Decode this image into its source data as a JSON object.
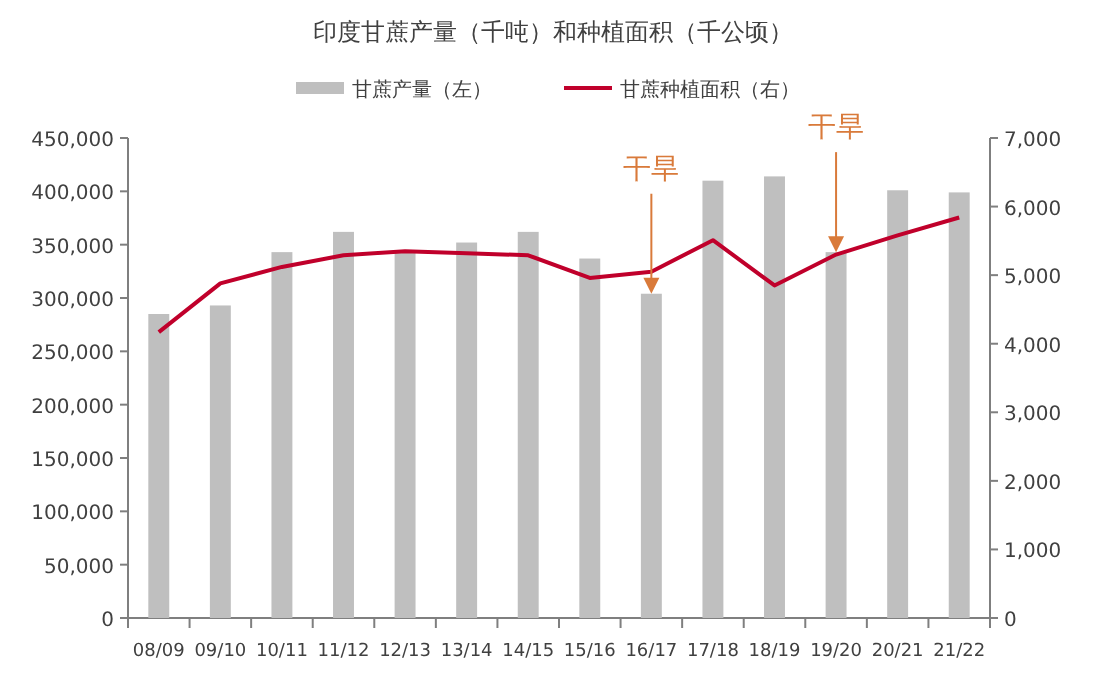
{
  "chart_data": {
    "type": "bar",
    "title": "印度甘蔗产量（千吨）和种植面积（千公顷）",
    "categories": [
      "08/09",
      "09/10",
      "10/11",
      "11/12",
      "12/13",
      "13/14",
      "14/15",
      "15/16",
      "16/17",
      "17/18",
      "18/19",
      "19/20",
      "20/21",
      "21/22"
    ],
    "series": [
      {
        "name": "甘蔗产量（左）",
        "color": "#bfbfbf",
        "values": [
          285000,
          293000,
          343000,
          362000,
          343000,
          352000,
          362000,
          337000,
          304000,
          410000,
          414000,
          343000,
          401000,
          399000
        ]
      },
      {
        "name": "甘蔗种植面积（右）",
        "type": "line",
        "axis": "y2",
        "color": "#c0002b",
        "values": [
          4170,
          4880,
          5120,
          5290,
          5350,
          5320,
          5290,
          4960,
          5050,
          5510,
          4850,
          5300,
          5580,
          5840
        ]
      }
    ],
    "ylim": [
      0,
      450000
    ],
    "yticks": [
      {
        "value": 0,
        "label": "0"
      },
      {
        "value": 50000,
        "label": "50,000"
      },
      {
        "value": 100000,
        "label": "100,000"
      },
      {
        "value": 150000,
        "label": "150,000"
      },
      {
        "value": 200000,
        "label": "200,000"
      },
      {
        "value": 250000,
        "label": "250,000"
      },
      {
        "value": 300000,
        "label": "300,000"
      },
      {
        "value": 350000,
        "label": "350,000"
      },
      {
        "value": 400000,
        "label": "400,000"
      },
      {
        "value": 450000,
        "label": "450,000"
      }
    ],
    "y2lim": [
      0,
      7000
    ],
    "y2ticks": [
      {
        "value": 0,
        "label": "0"
      },
      {
        "value": 1000,
        "label": "1,000"
      },
      {
        "value": 2000,
        "label": "2,000"
      },
      {
        "value": 3000,
        "label": "3,000"
      },
      {
        "value": 4000,
        "label": "4,000"
      },
      {
        "value": 5000,
        "label": "5,000"
      },
      {
        "value": 6000,
        "label": "6,000"
      },
      {
        "value": 7000,
        "label": "7,000"
      }
    ],
    "annotations": [
      {
        "text": "干旱",
        "x": "16/17",
        "y": 304000
      },
      {
        "text": "干旱",
        "x": "19/20",
        "y": 343000
      }
    ],
    "legend": "top",
    "grid": false,
    "marker": "none",
    "line_style": "solid"
  }
}
